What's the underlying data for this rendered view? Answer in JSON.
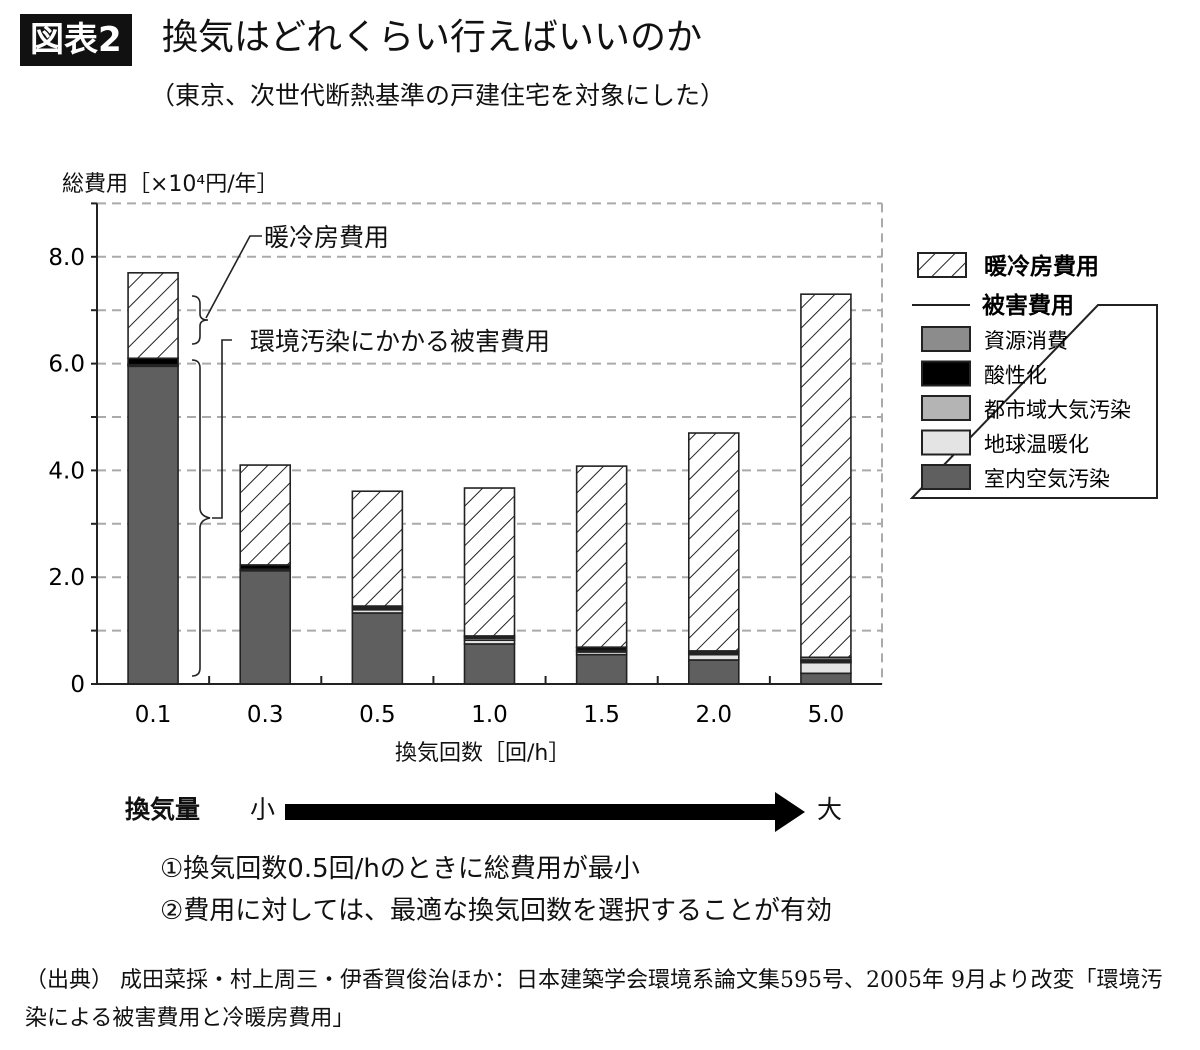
{
  "header": {
    "badge": "図表2",
    "title": "換気はどれくらい行えばいいのか",
    "subtitle": "（東京、次世代断熱基準の戸建住宅を対象にした）"
  },
  "chart_data": {
    "type": "bar",
    "stacked": true,
    "ylabel": "総費用［×10⁴円/年］",
    "xlabel": "換気回数［回/h］",
    "categories": [
      "0.1",
      "0.3",
      "0.5",
      "1.0",
      "1.5",
      "2.0",
      "5.0"
    ],
    "ylim": [
      0,
      9
    ],
    "yticks": [
      "0",
      "2.0",
      "4.0",
      "6.0",
      "8.0"
    ],
    "grid": true,
    "legend": "right",
    "series": [
      {
        "name": "室内空気汚染",
        "color": "#5f5f5f",
        "values": [
          5.95,
          2.12,
          1.33,
          0.75,
          0.55,
          0.45,
          0.2
        ]
      },
      {
        "name": "地球温暖化",
        "color": "#e4e4e4",
        "values": [
          0.02,
          0.02,
          0.06,
          0.07,
          0.05,
          0.1,
          0.2
        ]
      },
      {
        "name": "都市域大気汚染",
        "color": "#b4b4b4",
        "values": [
          0.01,
          0.01,
          0.03,
          0.04,
          0.03,
          0.03,
          0.03
        ]
      },
      {
        "name": "酸性化",
        "color": "#000000",
        "values": [
          0.12,
          0.08,
          0.03,
          0.03,
          0.05,
          0.03,
          0.02
        ]
      },
      {
        "name": "資源消費",
        "color": "#8c8c8c",
        "values": [
          0.0,
          0.0,
          0.01,
          0.01,
          0.01,
          0.01,
          0.05
        ]
      },
      {
        "name": "暖冷房費用",
        "pattern": "hatch",
        "values": [
          1.6,
          1.87,
          2.15,
          2.77,
          3.39,
          4.08,
          6.8
        ]
      }
    ],
    "legend_group_label": "被害費用",
    "annotations": [
      "暖冷房費用",
      "環境汚染にかかる被害費用"
    ]
  },
  "arrow": {
    "label": "換気量",
    "small": "小",
    "large": "大"
  },
  "notes": [
    "①換気回数0.5回/hのときに総費用が最小",
    "②費用に対しては、最適な換気回数を選択することが有効"
  ],
  "source": "（出典） 成田菜採・村上周三・伊香賀俊治ほか：日本建築学会環境系論文集595号、2005年 9月より改変「環境汚染による被害費用と冷暖房費用」"
}
